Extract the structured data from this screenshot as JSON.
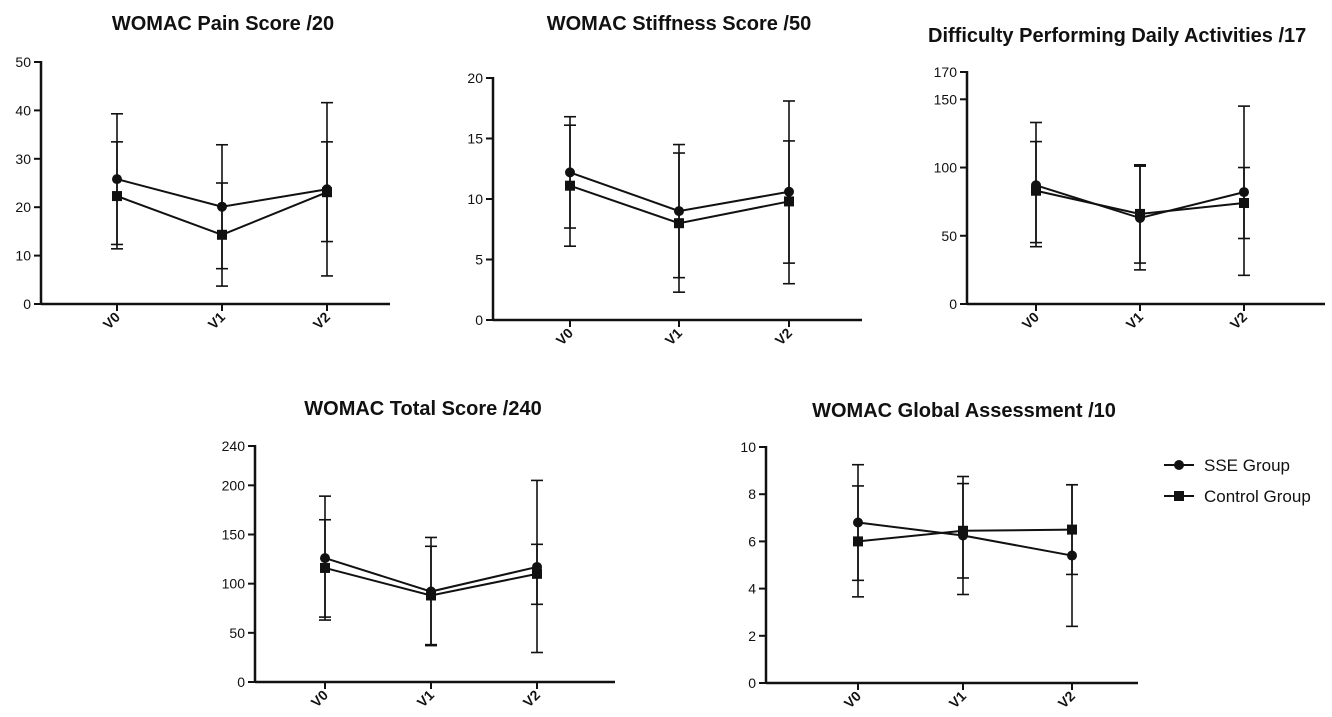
{
  "chart_data": [
    {
      "type": "line",
      "title": "WOMAC Pain Score /20",
      "categories": [
        "V0",
        "V1",
        "V2"
      ],
      "ylim": [
        0,
        50
      ],
      "yticks": [
        0,
        10,
        20,
        30,
        40,
        50
      ],
      "series": [
        {
          "name": "SSE Group",
          "marker": "circle",
          "values": [
            25.8,
            20.1,
            23.7
          ],
          "err_low": [
            12.3,
            7.3,
            12.9
          ],
          "err_high": [
            39.3,
            32.9,
            41.6
          ]
        },
        {
          "name": "Control Group",
          "marker": "square",
          "values": [
            22.3,
            14.3,
            23.1
          ],
          "err_low": [
            11.4,
            3.7,
            5.8
          ],
          "err_high": [
            33.5,
            25.0,
            33.5
          ]
        }
      ]
    },
    {
      "type": "line",
      "title": "WOMAC Stiffness Score /50",
      "categories": [
        "V0",
        "V1",
        "V2"
      ],
      "ylim": [
        0,
        20
      ],
      "yticks": [
        0,
        5,
        10,
        15,
        20
      ],
      "series": [
        {
          "name": "SSE Group",
          "marker": "circle",
          "values": [
            12.2,
            9.0,
            10.6
          ],
          "err_low": [
            7.6,
            3.5,
            3.0
          ],
          "err_high": [
            16.8,
            14.5,
            18.1
          ]
        },
        {
          "name": "Control Group",
          "marker": "square",
          "values": [
            11.1,
            8.0,
            9.8
          ],
          "err_low": [
            6.1,
            2.3,
            4.7
          ],
          "err_high": [
            16.1,
            13.8,
            14.8
          ]
        }
      ]
    },
    {
      "type": "line",
      "title": "Difficulty Performing Daily Activities /17",
      "categories": [
        "V0",
        "V1",
        "V2"
      ],
      "ylim": [
        0,
        170
      ],
      "yticks": [
        0,
        50,
        100,
        150,
        170
      ],
      "series": [
        {
          "name": "SSE Group",
          "marker": "circle",
          "values": [
            87,
            63,
            82
          ],
          "err_low": [
            42,
            25,
            48
          ],
          "err_high": [
            133,
            101,
            145
          ]
        },
        {
          "name": "Control Group",
          "marker": "square",
          "values": [
            83,
            66,
            74
          ],
          "err_low": [
            45,
            30,
            21
          ],
          "err_high": [
            119,
            102,
            100
          ]
        }
      ]
    },
    {
      "type": "line",
      "title": "WOMAC Total Score /240",
      "categories": [
        "V0",
        "V1",
        "V2"
      ],
      "ylim": [
        0,
        240
      ],
      "yticks": [
        0,
        50,
        100,
        150,
        200,
        240
      ],
      "series": [
        {
          "name": "SSE Group",
          "marker": "circle",
          "values": [
            126,
            92,
            117
          ],
          "err_low": [
            63,
            37,
            79
          ],
          "err_high": [
            189,
            147,
            205
          ]
        },
        {
          "name": "Control Group",
          "marker": "square",
          "values": [
            116,
            88,
            110
          ],
          "err_low": [
            66,
            38,
            30
          ],
          "err_high": [
            165,
            138,
            140
          ]
        }
      ]
    },
    {
      "type": "line",
      "title": "WOMAC Global Assessment /10",
      "categories": [
        "V0",
        "V1",
        "V2"
      ],
      "ylim": [
        0,
        10
      ],
      "yticks": [
        0,
        2,
        4,
        6,
        8,
        10
      ],
      "series": [
        {
          "name": "SSE Group",
          "marker": "circle",
          "values": [
            6.8,
            6.25,
            5.4
          ],
          "err_low": [
            4.35,
            3.75,
            2.4
          ],
          "err_high": [
            9.25,
            8.75,
            8.4
          ]
        },
        {
          "name": "Control Group",
          "marker": "square",
          "values": [
            6.0,
            6.45,
            6.5
          ],
          "err_low": [
            3.65,
            4.45,
            4.6
          ],
          "err_high": [
            8.35,
            8.45,
            8.4
          ]
        }
      ]
    }
  ],
  "legend": {
    "placement": "right of bottom-right panel",
    "entries": [
      {
        "label": "SSE Group",
        "marker": "circle"
      },
      {
        "label": "Control Group",
        "marker": "square"
      }
    ]
  },
  "colors": {
    "line": "#111111",
    "background": "#ffffff"
  }
}
